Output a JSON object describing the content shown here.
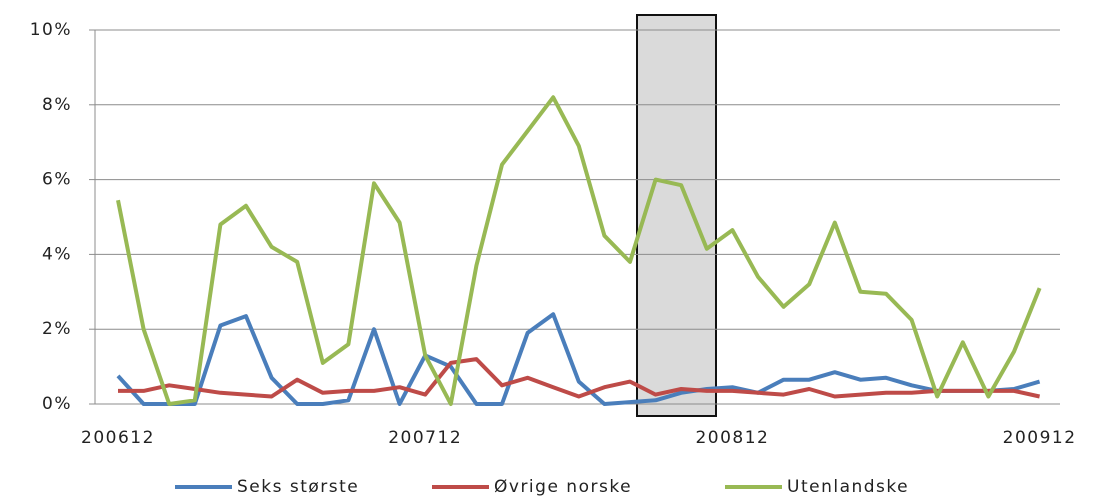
{
  "chart_data": {
    "type": "line",
    "categories": [
      "200612",
      null,
      null,
      null,
      null,
      null,
      null,
      null,
      null,
      null,
      null,
      null,
      "200712",
      null,
      null,
      null,
      null,
      null,
      null,
      null,
      null,
      null,
      null,
      null,
      "200812",
      null,
      null,
      null,
      null,
      null,
      null,
      null,
      null,
      null,
      null,
      null,
      "200912"
    ],
    "series": [
      {
        "name": "Seks største",
        "color": "#4a7ebb",
        "values": [
          0.75,
          0,
          0,
          0,
          2.1,
          2.35,
          0.7,
          0,
          0,
          0.1,
          2.0,
          0,
          1.3,
          1.0,
          0,
          0,
          1.9,
          2.4,
          0.6,
          0,
          0.05,
          0.1,
          0.3,
          0.4,
          0.45,
          0.3,
          0.65,
          0.65,
          0.85,
          0.65,
          0.7,
          0.5,
          0.35,
          0.35,
          0.35,
          0.4,
          0.6
        ]
      },
      {
        "name": "Øvrige norske",
        "color": "#be4b48",
        "values": [
          0.35,
          0.35,
          0.5,
          0.4,
          0.3,
          0.25,
          0.2,
          0.65,
          0.3,
          0.35,
          0.35,
          0.45,
          0.25,
          1.1,
          1.2,
          0.5,
          0.7,
          0.45,
          0.2,
          0.45,
          0.6,
          0.25,
          0.4,
          0.35,
          0.35,
          0.3,
          0.25,
          0.4,
          0.2,
          0.25,
          0.3,
          0.3,
          0.35,
          0.35,
          0.35,
          0.35,
          0.2
        ]
      },
      {
        "name": "Utenlandske",
        "color": "#98b954",
        "values": [
          5.45,
          2.0,
          0,
          0.1,
          4.8,
          5.3,
          4.2,
          3.8,
          1.1,
          1.6,
          5.9,
          4.85,
          1.3,
          0,
          3.7,
          6.4,
          7.3,
          8.2,
          6.9,
          4.5,
          3.8,
          6.0,
          5.85,
          4.15,
          4.65,
          3.4,
          2.6,
          3.2,
          4.85,
          3.0,
          2.95,
          2.25,
          0.2,
          1.65,
          0.2,
          1.4,
          3.1
        ]
      }
    ],
    "ylim": [
      0,
      10
    ],
    "yticks": [
      {
        "value": 0,
        "label": "0%"
      },
      {
        "value": 2,
        "label": "2%"
      },
      {
        "value": 4,
        "label": "4%"
      },
      {
        "value": 6,
        "label": "6%"
      },
      {
        "value": 8,
        "label": "8%"
      },
      {
        "value": 10,
        "label": "10%"
      }
    ],
    "grid": true
  }
}
